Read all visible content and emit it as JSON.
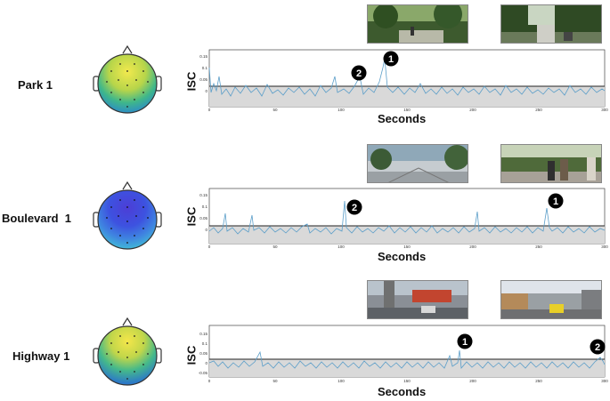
{
  "rows": [
    {
      "label": "Park 1",
      "ylabel": "ISC",
      "xlabel": "Seconds",
      "yticks": [
        "0.15",
        "0.1",
        "0.05",
        "0",
        "-0.05"
      ],
      "xticks": [
        "0",
        "50",
        "100",
        "150",
        "200",
        "250",
        "300"
      ],
      "markers": [
        "1",
        "2"
      ],
      "topo_palette": "yellow-green",
      "photo_themes": [
        "park-path",
        "park-bench"
      ]
    },
    {
      "label": "Boulevard  1",
      "ylabel": "ISC",
      "xlabel": "Seconds",
      "yticks": [
        "0.15",
        "0.1",
        "0.05",
        "0",
        "-0.05"
      ],
      "xticks": [
        "0",
        "50",
        "100",
        "150",
        "200",
        "250",
        "300"
      ],
      "markers": [
        "2",
        "1"
      ],
      "topo_palette": "blue-purple",
      "photo_themes": [
        "boulevard-plaza",
        "boulevard-walkers"
      ]
    },
    {
      "label": "Highway 1",
      "ylabel": "ISC",
      "xlabel": "Seconds",
      "yticks": [
        "0.15",
        "0.1",
        "0.05",
        "0",
        "-0.05"
      ],
      "xticks": [
        "0",
        "50",
        "100",
        "150",
        "200",
        "250",
        "300"
      ],
      "markers": [
        "1",
        "2"
      ],
      "topo_palette": "yellow-green",
      "photo_themes": [
        "highway-bus",
        "highway-yellow-car"
      ]
    }
  ],
  "colors": {
    "series": "#5b9ec9",
    "threshold": "#222222",
    "fill": "#d9d9d9",
    "marker": "#000000"
  }
}
